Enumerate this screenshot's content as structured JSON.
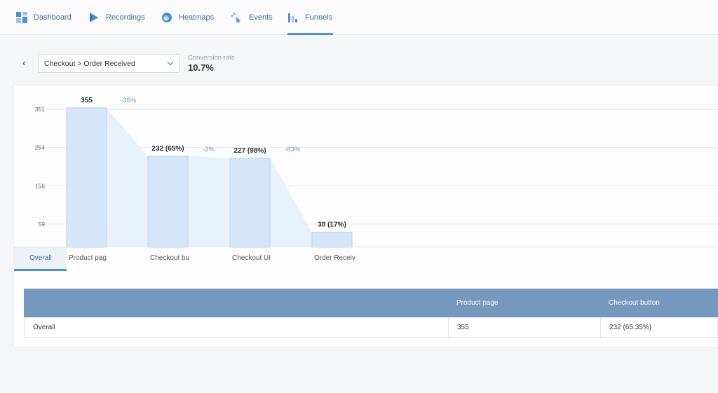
{
  "nav": {
    "items": [
      {
        "label": "Dashboard",
        "icon": "dashboard-icon"
      },
      {
        "label": "Recordings",
        "icon": "play-icon"
      },
      {
        "label": "Heatmaps",
        "icon": "heatmap-icon"
      },
      {
        "label": "Events",
        "icon": "events-icon"
      },
      {
        "label": "Funnels",
        "icon": "funnel-icon",
        "active": true
      }
    ]
  },
  "filter": {
    "back_icon": "‹",
    "funnel_selected": "Checkout > Order Received",
    "conversion_label": "Conversion rate",
    "conversion_value": "10.7%"
  },
  "colors": {
    "accent": "#4a90d9",
    "bar_fill": "#d5e6f8",
    "bar_stroke": "#b8d3ef",
    "flow_fill": "#e8f2fc",
    "table_header": "#7498be"
  },
  "chart_data": {
    "type": "bar",
    "categories": [
      "Product page",
      "Checkout button",
      "Checkout UI",
      "Order Received"
    ],
    "category_labels_shown": [
      "Product pag",
      "Checkout bu",
      "Checkout UI",
      "Order Receiv"
    ],
    "values": [
      355,
      232,
      227,
      38
    ],
    "value_labels": [
      "355",
      "232 (65%)",
      "227 (98%)",
      "38 (17%)"
    ],
    "dropoffs": [
      "-35%",
      "-2%",
      "-83%"
    ],
    "yticks": [
      351,
      254,
      156,
      59
    ],
    "ylim": [
      0,
      355
    ],
    "grid": true
  },
  "chart_tabs": {
    "overall": "Overall"
  },
  "table": {
    "columns": [
      "",
      "Product page",
      "Checkout button"
    ],
    "rows": [
      [
        "Overall",
        "355",
        "232 (65.35%)"
      ]
    ]
  }
}
